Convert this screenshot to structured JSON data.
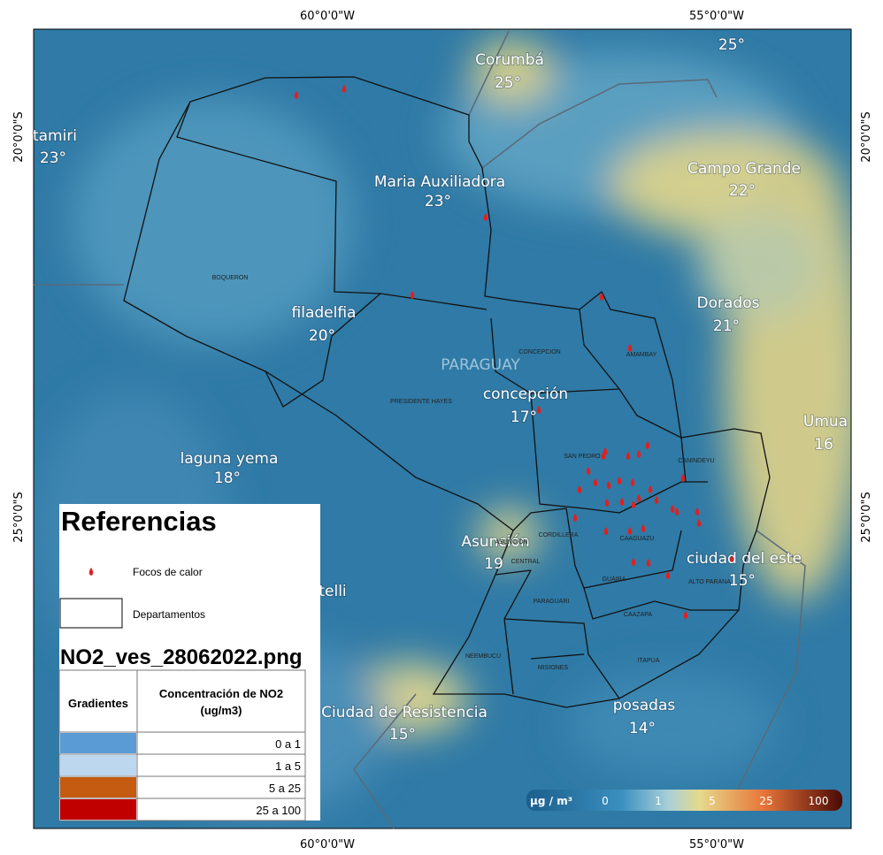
{
  "axes": {
    "top": [
      "60°0'0\"W",
      "55°0'0\"W"
    ],
    "bottom": [
      "60°0'0\"W",
      "55°0'0\"W"
    ],
    "left": [
      "20°0'0\"S",
      "25°0'0\"S"
    ],
    "right": [
      "20°0'0\"S",
      "25°0'0\"S"
    ]
  },
  "places": [
    {
      "name": "Corumbá",
      "temp": "25°"
    },
    {
      "temp": "25°"
    },
    {
      "name": "tamiri",
      "temp": "23°"
    },
    {
      "name": "Maria Auxiliadora",
      "temp": "23°"
    },
    {
      "name": "Campo Grande",
      "temp": "22°"
    },
    {
      "name": "filadelfia",
      "temp": "20°"
    },
    {
      "name": "Dorados",
      "temp": "21°"
    },
    {
      "name": "PARAGUAY"
    },
    {
      "name": "concepción",
      "temp": "17°"
    },
    {
      "name": "Umua",
      "temp": "16"
    },
    {
      "name": "laguna yema",
      "temp": "18°"
    },
    {
      "name": "Asunción",
      "temp": "19"
    },
    {
      "name": "telli"
    },
    {
      "name": "ciudad del este",
      "temp": "15°"
    },
    {
      "name": "Ciudad de Resistencia",
      "temp": "15°"
    },
    {
      "name": "posadas",
      "temp": "14°"
    }
  ],
  "departments": [
    "BOQUERON",
    "CONCEPCION",
    "AMAMBAY",
    "PRESIDENTE HAYES",
    "SAN PEDRO",
    "CANINDEYU",
    "CORDILLERA",
    "CAAGUAZU",
    "ASUNCION",
    "CENTRAL",
    "GUAIRA",
    "ALTO PARANA",
    "PARAGUARI",
    "CAAZAPA",
    "NEEMBUCU",
    "MISIONES",
    "ITAPUA"
  ],
  "legend": {
    "title": "Referencias",
    "fires": "Focos de calor",
    "departments": "Departamentos",
    "image": "NO2_ves_28062022.png",
    "header": [
      "Gradientes",
      "Concentración de NO2",
      "(ug/m3)"
    ],
    "rows": [
      {
        "color": "#5b9bd5",
        "label": "0 a 1"
      },
      {
        "color": "#bdd7ee",
        "label": "1 a 5"
      },
      {
        "color": "#c55a11",
        "label": "5 a 25"
      },
      {
        "color": "#c00000",
        "label": "25 a 100"
      }
    ]
  },
  "colorbar": {
    "unit": "µg / m³",
    "labels": [
      "0",
      "1",
      "5",
      "25",
      "100"
    ]
  }
}
